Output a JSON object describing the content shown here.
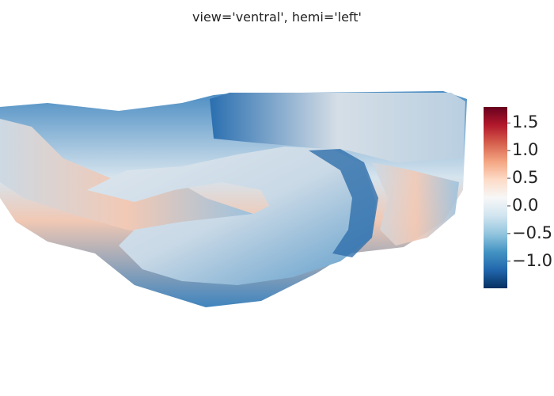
{
  "chart_data": {
    "type": "surface",
    "title": "view='ventral', hemi='left'",
    "colorscale": [
      "#053061",
      "#2166ac",
      "#4393c3",
      "#92c5de",
      "#d1e5f0",
      "#f7f7f7",
      "#fddbc7",
      "#f4a582",
      "#d6604d",
      "#b2182b",
      "#67001f"
    ],
    "clim": [
      -1.49,
      1.79
    ],
    "cticks": [
      1.5,
      {
        "value": 1,
        "label": "1.0"
      },
      0.5,
      {
        "value": 0,
        "label": "0.0"
      },
      {
        "value": -0.5,
        "label": "−0.5"
      },
      {
        "value": -1,
        "label": "−1.0"
      }
    ]
  }
}
